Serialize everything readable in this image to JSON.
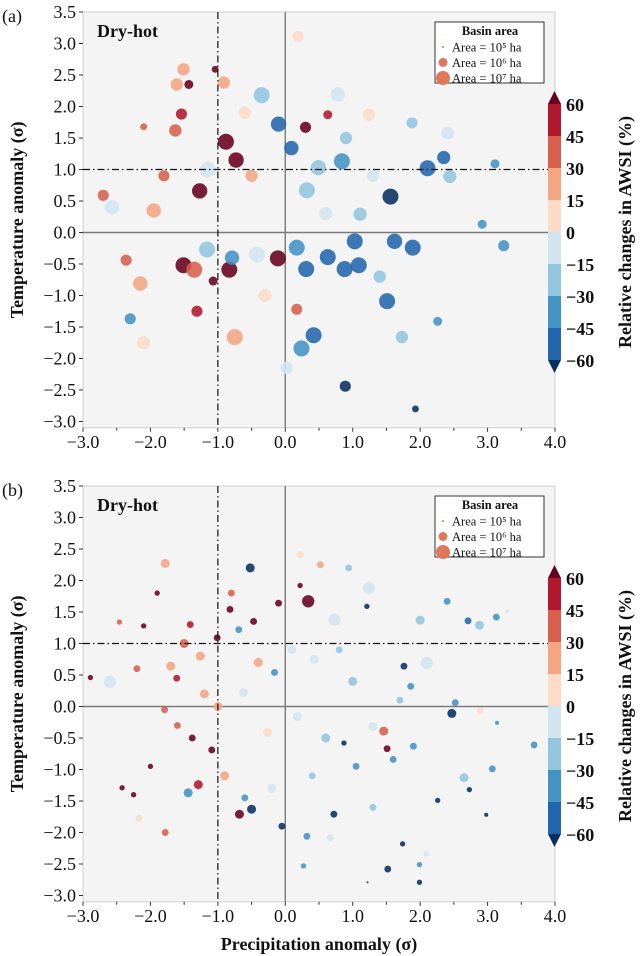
{
  "chart_data": [
    {
      "type": "scatter",
      "panel_label": "(a)",
      "annotation": "Dry-hot",
      "xlabel": "",
      "ylabel": "Temperature anomaly (σ)",
      "xlim": [
        -3.0,
        4.0
      ],
      "ylim": [
        -3.1,
        3.5
      ],
      "x_ticks": [
        "−3.0",
        "−2.0",
        "−1.0",
        "0.0",
        "1.0",
        "2.0",
        "3.0",
        "4.0"
      ],
      "y_ticks": [
        "3.5",
        "3.0",
        "2.5",
        "2.0",
        "1.5",
        "1.0",
        "0.5",
        "0.0",
        "−0.5",
        "−1.0",
        "−1.5",
        "−2.0",
        "−2.5",
        "−3.0"
      ],
      "reference_lines": {
        "dash_dot": {
          "x": -1.0,
          "y": 1.0
        },
        "solid": {
          "x": 0.0,
          "y": 0.0
        }
      },
      "point_fields": [
        "precipitation_anomaly",
        "temperature_anomaly",
        "relative_change_awsi_pct",
        "basin_area_ha"
      ],
      "points": [
        [
          -0.88,
          1.44,
          65,
          10000000.0
        ],
        [
          -0.73,
          1.15,
          65,
          8000000.0
        ],
        [
          -1.27,
          0.66,
          65,
          8000000.0
        ],
        [
          -1.15,
          1.0,
          -10,
          10000000.0
        ],
        [
          -0.1,
          1.72,
          -50,
          8000000.0
        ],
        [
          0.09,
          1.34,
          -50,
          6000000.0
        ],
        [
          -0.35,
          2.18,
          -20,
          10000000.0
        ],
        [
          0.32,
          0.67,
          -20,
          10000000.0
        ],
        [
          0.3,
          1.67,
          65,
          2000000.0
        ],
        [
          -2.57,
          0.4,
          -10,
          6000000.0
        ],
        [
          -2.7,
          0.59,
          35,
          2000000.0
        ],
        [
          -1.95,
          0.35,
          20,
          6000000.0
        ],
        [
          -1.63,
          1.62,
          35,
          3000000.0
        ],
        [
          -1.54,
          1.88,
          50,
          2000000.0
        ],
        [
          -1.61,
          2.35,
          25,
          3000000.0
        ],
        [
          -1.43,
          2.35,
          65,
          1000000.0
        ],
        [
          -0.91,
          2.38,
          20,
          3000000.0
        ],
        [
          0.84,
          1.13,
          -35,
          10000000.0
        ],
        [
          0.49,
          1.03,
          -20,
          8000000.0
        ],
        [
          2.11,
          1.02,
          -50,
          10000000.0
        ],
        [
          2.35,
          1.19,
          -50,
          4000000.0
        ],
        [
          3.11,
          1.09,
          -40,
          1000000.0
        ],
        [
          1.56,
          0.57,
          -70,
          10000000.0
        ],
        [
          2.44,
          0.89,
          -20,
          4000000.0
        ],
        [
          2.41,
          1.58,
          -10,
          4000000.0
        ],
        [
          1.88,
          1.74,
          -20,
          2000000.0
        ],
        [
          0.78,
          2.19,
          -10,
          6000000.0
        ],
        [
          1.24,
          1.87,
          5,
          3000000.0
        ],
        [
          2.92,
          0.13,
          -40,
          1000000.0
        ],
        [
          3.24,
          -0.21,
          -35,
          2000000.0
        ],
        [
          0.63,
          1.87,
          50,
          1000000.0
        ],
        [
          1.11,
          0.29,
          -20,
          4000000.0
        ],
        [
          -1.51,
          -0.52,
          65,
          10000000.0
        ],
        [
          -1.35,
          -0.59,
          35,
          10000000.0
        ],
        [
          -0.83,
          -0.59,
          65,
          10000000.0
        ],
        [
          -0.11,
          -0.41,
          65,
          10000000.0
        ],
        [
          -0.79,
          -0.4,
          -40,
          6000000.0
        ],
        [
          -1.16,
          -0.27,
          -20,
          10000000.0
        ],
        [
          -0.42,
          -0.35,
          -10,
          10000000.0
        ],
        [
          0.17,
          -0.24,
          -40,
          10000000.0
        ],
        [
          0.31,
          -0.58,
          -50,
          10000000.0
        ],
        [
          0.63,
          -0.39,
          -50,
          10000000.0
        ],
        [
          0.88,
          -0.58,
          -50,
          10000000.0
        ],
        [
          1.09,
          -0.52,
          -50,
          10000000.0
        ],
        [
          1.03,
          -0.14,
          -50,
          10000000.0
        ],
        [
          1.62,
          -0.14,
          -50,
          8000000.0
        ],
        [
          1.89,
          -0.24,
          -50,
          10000000.0
        ],
        [
          1.51,
          -1.09,
          -50,
          10000000.0
        ],
        [
          0.42,
          -1.63,
          -50,
          10000000.0
        ],
        [
          0.24,
          -1.84,
          -40,
          10000000.0
        ],
        [
          -0.75,
          -1.66,
          25,
          10000000.0
        ],
        [
          -2.15,
          -0.81,
          25,
          6000000.0
        ],
        [
          -2.3,
          -1.37,
          -40,
          2000000.0
        ],
        [
          -2.1,
          -1.75,
          10,
          4000000.0
        ],
        [
          0.89,
          -2.44,
          -70,
          2000000.0
        ],
        [
          1.93,
          -2.8,
          -70,
          500000.0
        ],
        [
          2.26,
          -1.41,
          -35,
          1000000.0
        ],
        [
          1.73,
          -1.66,
          -20,
          3000000.0
        ],
        [
          -2.36,
          -0.44,
          40,
          2000000.0
        ],
        [
          -1.31,
          -1.25,
          55,
          2000000.0
        ],
        [
          0.17,
          -1.22,
          40,
          2000000.0
        ],
        [
          0.02,
          -2.15,
          -15,
          3000000.0
        ],
        [
          -1.07,
          -0.77,
          65,
          1000000.0
        ],
        [
          0.19,
          3.11,
          10,
          2000000.0
        ],
        [
          -1.04,
          2.59,
          65,
          500000.0
        ],
        [
          -1.51,
          2.59,
          20,
          3000000.0
        ],
        [
          -2.1,
          1.68,
          30,
          500000.0
        ],
        [
          -0.5,
          0.9,
          20,
          3000000.0
        ],
        [
          0.6,
          0.3,
          -15,
          4000000.0
        ],
        [
          -0.3,
          -1.0,
          10,
          4000000.0
        ],
        [
          1.3,
          0.9,
          -10,
          3000000.0
        ],
        [
          0.9,
          1.5,
          -25,
          3000000.0
        ],
        [
          -1.8,
          0.9,
          40,
          2000000.0
        ],
        [
          -0.6,
          1.9,
          10,
          3000000.0
        ],
        [
          1.4,
          -0.7,
          -25,
          3000000.0
        ]
      ]
    },
    {
      "type": "scatter",
      "panel_label": "(b)",
      "annotation": "Dry-hot",
      "xlabel": "Precipitation anomaly (σ)",
      "ylabel": "Temperature anomaly (σ)",
      "xlim": [
        -3.0,
        4.0
      ],
      "ylim": [
        -3.1,
        3.5
      ],
      "x_ticks": [
        "−3.0",
        "−2.0",
        "−1.0",
        "0.0",
        "1.0",
        "2.0",
        "3.0",
        "4.0"
      ],
      "y_ticks": [
        "3.5",
        "3.0",
        "2.5",
        "2.0",
        "1.5",
        "1.0",
        "0.5",
        "0.0",
        "−0.5",
        "−1.0",
        "−1.5",
        "−2.0",
        "−2.5",
        "−3.0"
      ],
      "reference_lines": {
        "dash_dot": {
          "x": -1.0,
          "y": 1.0
        },
        "solid": {
          "x": 0.0,
          "y": 0.0
        }
      },
      "point_fields": [
        "precipitation_anomaly",
        "temperature_anomaly",
        "relative_change_awsi_pct",
        "basin_area_ha"
      ],
      "points": [
        [
          -1.78,
          2.27,
          20,
          1000000.0
        ],
        [
          -0.52,
          2.2,
          -70,
          1000000.0
        ],
        [
          0.34,
          1.67,
          65,
          3000000.0
        ],
        [
          0.73,
          1.38,
          -10,
          3000000.0
        ],
        [
          1.24,
          1.88,
          -10,
          3000000.0
        ],
        [
          2.0,
          1.37,
          -20,
          1000000.0
        ],
        [
          2.4,
          1.67,
          -40,
          500000.0
        ],
        [
          2.71,
          1.36,
          -50,
          500000.0
        ],
        [
          2.88,
          1.29,
          -20,
          1000000.0
        ],
        [
          3.13,
          1.42,
          -40,
          500000.0
        ],
        [
          2.1,
          0.69,
          -10,
          3000000.0
        ],
        [
          -2.6,
          0.39,
          -10,
          3000000.0
        ],
        [
          -2.89,
          0.46,
          65,
          300000.0
        ],
        [
          -2.46,
          1.34,
          35,
          300000.0
        ],
        [
          -2.1,
          1.28,
          65,
          300000.0
        ],
        [
          -1.61,
          0.45,
          55,
          500000.0
        ],
        [
          -1.41,
          1.3,
          55,
          500000.0
        ],
        [
          -1.01,
          1.09,
          65,
          500000.0
        ],
        [
          -0.69,
          1.22,
          -45,
          500000.0
        ],
        [
          -0.47,
          1.35,
          65,
          500000.0
        ],
        [
          -0.1,
          1.64,
          65,
          500000.0
        ],
        [
          -0.82,
          1.54,
          65,
          500000.0
        ],
        [
          -1.79,
          -0.05,
          35,
          500000.0
        ],
        [
          -1.38,
          -0.5,
          65,
          500000.0
        ],
        [
          -1.09,
          -0.69,
          65,
          500000.0
        ],
        [
          -1.29,
          -1.24,
          50,
          1000000.0
        ],
        [
          -1.44,
          -1.37,
          -40,
          1000000.0
        ],
        [
          -2.0,
          -0.95,
          65,
          300000.0
        ],
        [
          -2.42,
          -1.29,
          65,
          300000.0
        ],
        [
          -2.25,
          -1.4,
          65,
          300000.0
        ],
        [
          -2.17,
          -1.77,
          10,
          500000.0
        ],
        [
          -1.78,
          -2.0,
          30,
          500000.0
        ],
        [
          -0.68,
          -1.71,
          65,
          1000000.0
        ],
        [
          -0.5,
          -1.63,
          -70,
          1000000.0
        ],
        [
          -0.6,
          -1.45,
          -40,
          500000.0
        ],
        [
          -0.05,
          -1.9,
          -70,
          500000.0
        ],
        [
          0.32,
          -2.06,
          -40,
          500000.0
        ],
        [
          0.27,
          -2.53,
          -40,
          300000.0
        ],
        [
          1.22,
          -2.79,
          -70,
          100000.0
        ],
        [
          1.52,
          -2.58,
          -70,
          500000.0
        ],
        [
          1.74,
          -2.18,
          -70,
          300000.0
        ],
        [
          1.99,
          -2.79,
          -70,
          300000.0
        ],
        [
          1.99,
          -2.51,
          -40,
          300000.0
        ],
        [
          2.09,
          -2.34,
          -10,
          300000.0
        ],
        [
          2.26,
          -1.49,
          -70,
          300000.0
        ],
        [
          2.73,
          -1.32,
          -70,
          300000.0
        ],
        [
          2.98,
          -1.72,
          -70,
          200000.0
        ],
        [
          3.07,
          -0.99,
          -40,
          500000.0
        ],
        [
          2.65,
          -1.13,
          -20,
          1000000.0
        ],
        [
          3.69,
          -0.61,
          -40,
          500000.0
        ],
        [
          2.47,
          -0.11,
          -70,
          1000000.0
        ],
        [
          2.89,
          -0.07,
          10,
          500000.0
        ],
        [
          2.52,
          0.06,
          -40,
          500000.0
        ],
        [
          1.46,
          -0.39,
          35,
          1000000.0
        ],
        [
          1.51,
          -0.67,
          65,
          500000.0
        ],
        [
          0.87,
          -0.58,
          -70,
          300000.0
        ],
        [
          0.72,
          -1.71,
          -70,
          500000.0
        ],
        [
          0.67,
          -2.08,
          -15,
          500000.0
        ],
        [
          1.76,
          0.64,
          -70,
          500000.0
        ],
        [
          1.86,
          0.32,
          -40,
          500000.0
        ],
        [
          1.21,
          1.59,
          -70,
          300000.0
        ],
        [
          0.94,
          2.2,
          -20,
          500000.0
        ],
        [
          0.52,
          2.25,
          25,
          500000.0
        ],
        [
          0.22,
          1.92,
          65,
          300000.0
        ],
        [
          -0.16,
          0.54,
          -40,
          500000.0
        ],
        [
          0.43,
          0.75,
          -10,
          1000000.0
        ],
        [
          -0.62,
          0.22,
          -10,
          1000000.0
        ],
        [
          -1.0,
          0.0,
          25,
          1000000.0
        ],
        [
          -0.26,
          -0.41,
          10,
          1000000.0
        ],
        [
          0.18,
          -0.16,
          -10,
          1000000.0
        ],
        [
          1.05,
          -0.95,
          -40,
          500000.0
        ],
        [
          1.3,
          -0.32,
          -10,
          1000000.0
        ],
        [
          1.6,
          -0.84,
          -40,
          500000.0
        ],
        [
          1.9,
          -0.63,
          -40,
          500000.0
        ],
        [
          -1.7,
          0.64,
          25,
          1000000.0
        ],
        [
          -1.26,
          0.8,
          25,
          1000000.0
        ],
        [
          -1.9,
          1.8,
          65,
          300000.0
        ],
        [
          3.29,
          1.51,
          -15,
          200000.0
        ],
        [
          3.14,
          -0.26,
          -40,
          200000.0
        ],
        [
          0.22,
          2.41,
          10,
          500000.0
        ],
        [
          -1.5,
          1.0,
          30,
          1000000.0
        ],
        [
          -1.2,
          0.2,
          20,
          1000000.0
        ],
        [
          -0.4,
          0.7,
          15,
          1000000.0
        ],
        [
          0.1,
          0.9,
          -10,
          1000000.0
        ],
        [
          0.6,
          -0.5,
          -20,
          1000000.0
        ],
        [
          1.0,
          0.4,
          -20,
          1000000.0
        ],
        [
          -0.9,
          -1.1,
          20,
          1000000.0
        ],
        [
          -0.2,
          -1.3,
          -15,
          1000000.0
        ],
        [
          0.4,
          -1.1,
          -30,
          500000.0
        ],
        [
          1.3,
          -1.6,
          -30,
          500000.0
        ],
        [
          -2.2,
          0.6,
          40,
          500000.0
        ],
        [
          -1.6,
          -0.3,
          40,
          500000.0
        ],
        [
          -0.8,
          1.8,
          30,
          500000.0
        ],
        [
          0.8,
          0.9,
          -30,
          500000.0
        ],
        [
          1.7,
          0.1,
          -30,
          500000.0
        ]
      ]
    }
  ],
  "legend": {
    "title": "Basin area",
    "entries": [
      {
        "label": "Area = 10⁵ ha",
        "area_ha": 100000.0
      },
      {
        "label": "Area = 10⁶ ha",
        "area_ha": 1000000.0
      },
      {
        "label": "Area = 10⁷ ha",
        "area_ha": 10000000.0
      }
    ],
    "marker_color": "#e0765a"
  },
  "colorbar": {
    "label": "Relative changes in AWSI (%)",
    "ticks": [
      "60",
      "45",
      "30",
      "15",
      "0",
      "−15",
      "−30",
      "−45",
      "−60"
    ],
    "bounds": [
      60,
      45,
      30,
      15,
      0,
      -15,
      -30,
      -45,
      -60
    ],
    "extend": "both",
    "colors": [
      "#b2182b",
      "#d6604d",
      "#f4a582",
      "#fddbc7",
      "#d1e5f0",
      "#92c5de",
      "#4393c3",
      "#2166ac"
    ],
    "over_color": "#67001f",
    "under_color": "#053061"
  }
}
